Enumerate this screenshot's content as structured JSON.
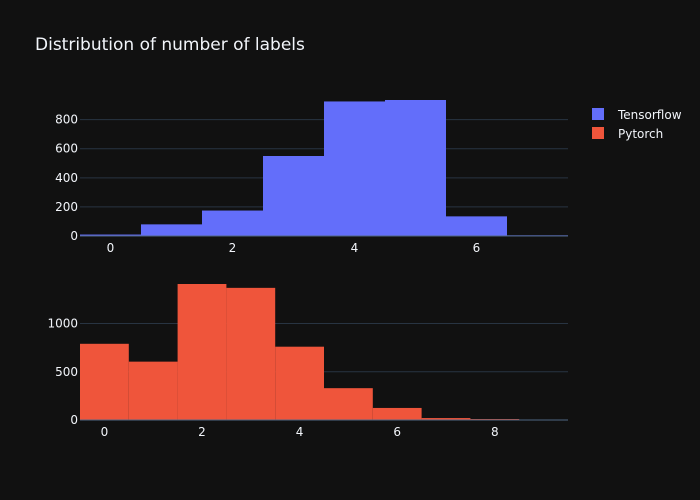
{
  "chart_data": [
    {
      "type": "bar",
      "title": "Distribution of number of labels",
      "series": [
        {
          "name": "Tensorflow",
          "color": "#636efa",
          "bin_width": 1,
          "bins": [
            {
              "x0": -0.5,
              "x1": 0.5,
              "value": 10
            },
            {
              "x0": 0.5,
              "x1": 1.5,
              "value": 80
            },
            {
              "x0": 1.5,
              "x1": 2.5,
              "value": 175
            },
            {
              "x0": 2.5,
              "x1": 3.5,
              "value": 550
            },
            {
              "x0": 3.5,
              "x1": 4.5,
              "value": 925
            },
            {
              "x0": 4.5,
              "x1": 5.5,
              "value": 935
            },
            {
              "x0": 5.5,
              "x1": 6.5,
              "value": 135
            },
            {
              "x0": 6.5,
              "x1": 7.5,
              "value": 5
            }
          ]
        }
      ],
      "x_range": [
        -0.5,
        7.5
      ],
      "y_range": [
        0,
        935
      ],
      "x_ticks": [
        0,
        2,
        4,
        6
      ],
      "y_ticks": [
        0,
        200,
        400,
        600,
        800
      ],
      "grid": true
    },
    {
      "type": "bar",
      "series": [
        {
          "name": "Pytorch",
          "color": "#ef553b",
          "bin_width": 1,
          "bins": [
            {
              "x0": -0.5,
              "x1": 0.5,
              "value": 790
            },
            {
              "x0": 0.5,
              "x1": 1.5,
              "value": 605
            },
            {
              "x0": 1.5,
              "x1": 2.5,
              "value": 1410
            },
            {
              "x0": 2.5,
              "x1": 3.5,
              "value": 1370
            },
            {
              "x0": 3.5,
              "x1": 4.5,
              "value": 760
            },
            {
              "x0": 4.5,
              "x1": 5.5,
              "value": 330
            },
            {
              "x0": 5.5,
              "x1": 6.5,
              "value": 125
            },
            {
              "x0": 6.5,
              "x1": 7.5,
              "value": 20
            },
            {
              "x0": 7.5,
              "x1": 8.5,
              "value": 10
            },
            {
              "x0": 8.5,
              "x1": 9.5,
              "value": 4
            }
          ]
        }
      ],
      "x_range": [
        -0.5,
        9.5
      ],
      "y_range": [
        0,
        1410
      ],
      "x_ticks": [
        0,
        2,
        4,
        6,
        8
      ],
      "y_ticks": [
        0,
        500,
        1000
      ],
      "grid": true
    }
  ],
  "legend": {
    "placement": "top-right",
    "items": [
      {
        "label": "Tensorflow",
        "color": "#636efa"
      },
      {
        "label": "Pytorch",
        "color": "#ef553b"
      }
    ]
  }
}
